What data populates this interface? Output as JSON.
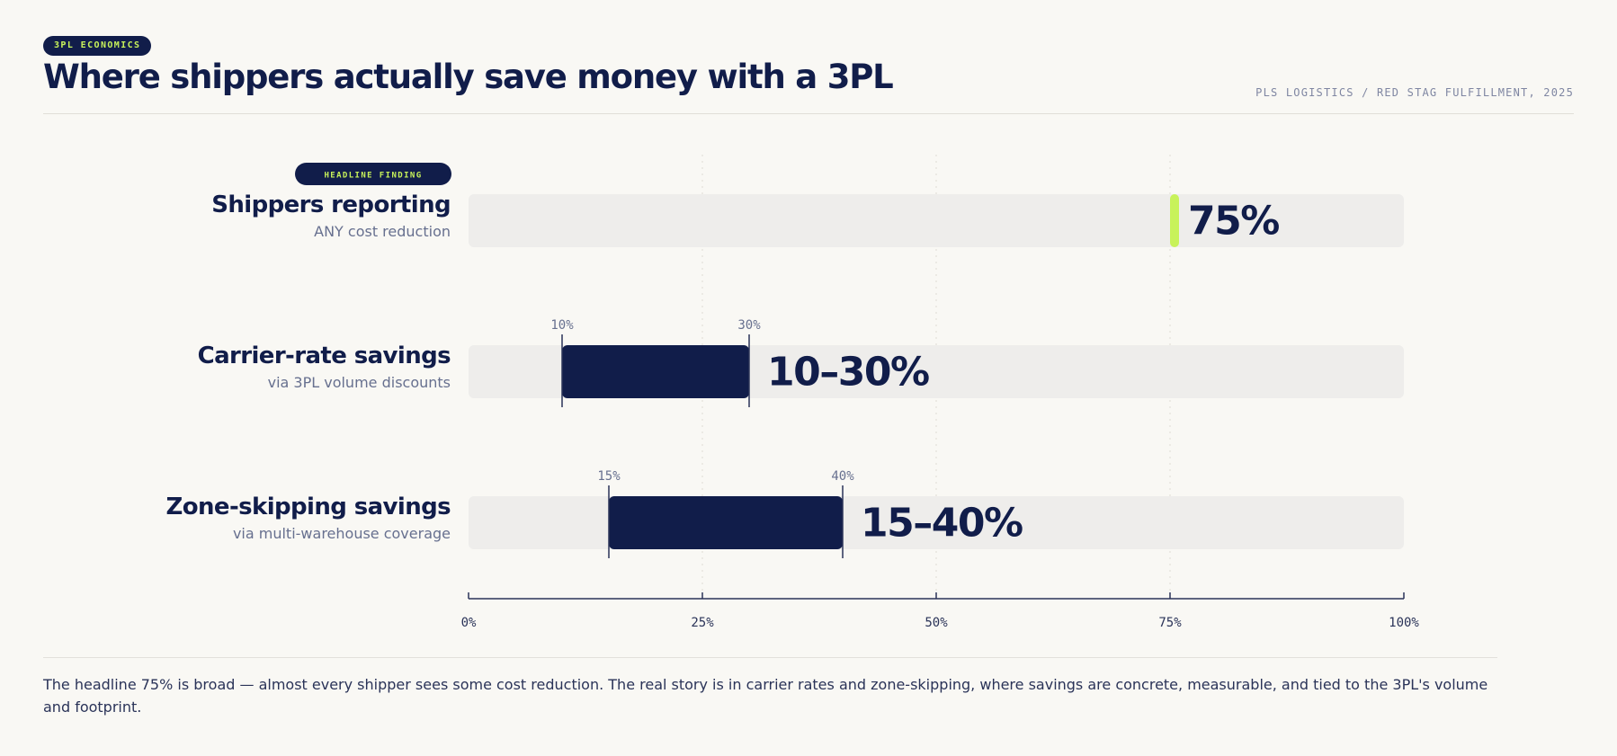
{
  "header": {
    "kicker": "3PL ECONOMICS",
    "title": "Where shippers actually save money with a 3PL",
    "source": "PLS LOGISTICS / RED STAG FULFILLMENT, 2025"
  },
  "colors": {
    "navy": "#111d4a",
    "accent": "#c8f25a",
    "track": "#eeedeb",
    "muted": "#67708f"
  },
  "chart_data": {
    "type": "bar",
    "orientation": "horizontal",
    "xlim": [
      0,
      100
    ],
    "x_ticks": [
      0,
      25,
      50,
      75,
      100
    ],
    "x_tick_labels": [
      "0%",
      "25%",
      "50%",
      "75%",
      "100%"
    ],
    "grid": "vertical dotted at ticks",
    "rows": [
      {
        "label": "Shippers reporting",
        "sublabel": "ANY cost reduction",
        "badge": "HEADLINE FINDING",
        "kind": "point",
        "value": 75,
        "value_label": "75%"
      },
      {
        "label": "Carrier-rate savings",
        "sublabel": "via 3PL volume discounts",
        "kind": "range",
        "low": 10,
        "high": 30,
        "low_label": "10%",
        "high_label": "30%",
        "value_label": "10–30%"
      },
      {
        "label": "Zone-skipping savings",
        "sublabel": "via multi-warehouse coverage",
        "kind": "range",
        "low": 15,
        "high": 40,
        "low_label": "15%",
        "high_label": "40%",
        "value_label": "15–40%"
      }
    ]
  },
  "footnote": "The headline 75% is broad — almost every shipper sees some cost reduction. The real story is in carrier rates and zone-skipping, where savings are concrete, measurable, and tied to the 3PL's volume and footprint."
}
